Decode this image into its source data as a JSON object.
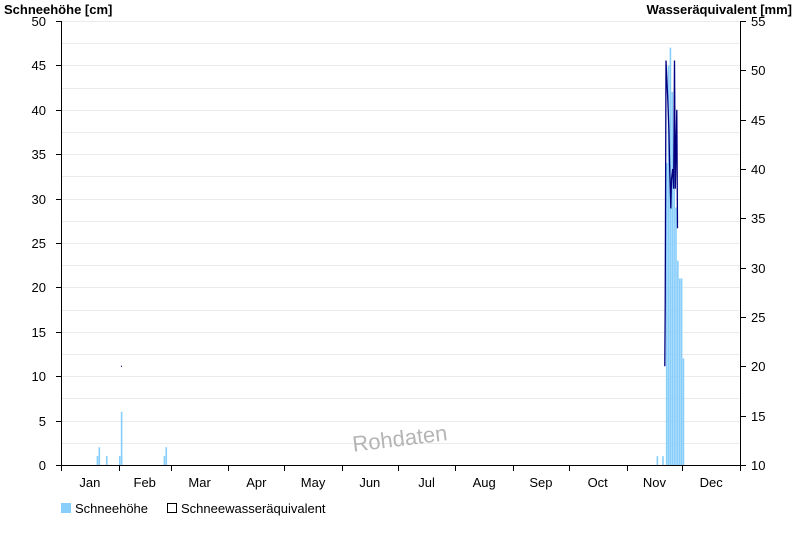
{
  "chart_data": {
    "type": "bar",
    "left_axis_title": "Schneehöhe [cm]",
    "right_axis_title": "Wasseräquivalent [mm]",
    "left_ylim": [
      0,
      50
    ],
    "left_ticks": [
      0,
      5,
      10,
      15,
      20,
      25,
      30,
      35,
      40,
      45,
      50
    ],
    "right_ylim": [
      10,
      55
    ],
    "right_ticks": [
      10,
      15,
      20,
      25,
      30,
      35,
      40,
      45,
      50,
      55
    ],
    "x_range_days": [
      0,
      365
    ],
    "months": [
      "Jan",
      "Feb",
      "Mar",
      "Apr",
      "May",
      "Jun",
      "Jul",
      "Aug",
      "Sep",
      "Oct",
      "Nov",
      "Dec"
    ],
    "month_start_days": [
      0,
      31,
      59,
      90,
      120,
      151,
      181,
      212,
      243,
      273,
      304,
      334,
      365
    ],
    "grid": true,
    "watermark": "Rohdaten",
    "series": [
      {
        "name": "Schneehöhe",
        "kind": "bar",
        "axis": "left",
        "color": "#87cefa",
        "points": [
          {
            "day": 19,
            "value": 1
          },
          {
            "day": 20,
            "value": 2
          },
          {
            "day": 24,
            "value": 1
          },
          {
            "day": 31,
            "value": 1
          },
          {
            "day": 32,
            "value": 6
          },
          {
            "day": 55,
            "value": 1
          },
          {
            "day": 56,
            "value": 2
          },
          {
            "day": 320,
            "value": 1
          },
          {
            "day": 323,
            "value": 1
          },
          {
            "day": 325,
            "value": 34
          },
          {
            "day": 326,
            "value": 45
          },
          {
            "day": 327,
            "value": 47
          },
          {
            "day": 328,
            "value": 42
          },
          {
            "day": 329,
            "value": 35
          },
          {
            "day": 330,
            "value": 29
          },
          {
            "day": 331,
            "value": 23
          },
          {
            "day": 332,
            "value": 21
          },
          {
            "day": 333,
            "value": 21
          },
          {
            "day": 334,
            "value": 12
          }
        ]
      },
      {
        "name": "Schneewasseräquivalent",
        "kind": "line",
        "axis": "right",
        "color": "#000080",
        "points": [
          {
            "day": 32.5,
            "value": 20
          },
          {
            "day": 324.6,
            "value": 20
          },
          {
            "day": 324.8,
            "value": 26
          },
          {
            "day": 325.2,
            "value": 51
          },
          {
            "day": 326.2,
            "value": 47
          },
          {
            "day": 326.8,
            "value": 44
          },
          {
            "day": 327.2,
            "value": 40
          },
          {
            "day": 327.8,
            "value": 36
          },
          {
            "day": 328.2,
            "value": 39
          },
          {
            "day": 328.8,
            "value": 40
          },
          {
            "day": 329.3,
            "value": 38
          },
          {
            "day": 329.8,
            "value": 51
          },
          {
            "day": 330.2,
            "value": 38
          },
          {
            "day": 330.6,
            "value": 42
          },
          {
            "day": 331.0,
            "value": 46
          },
          {
            "day": 331.4,
            "value": 34
          }
        ]
      }
    ]
  }
}
